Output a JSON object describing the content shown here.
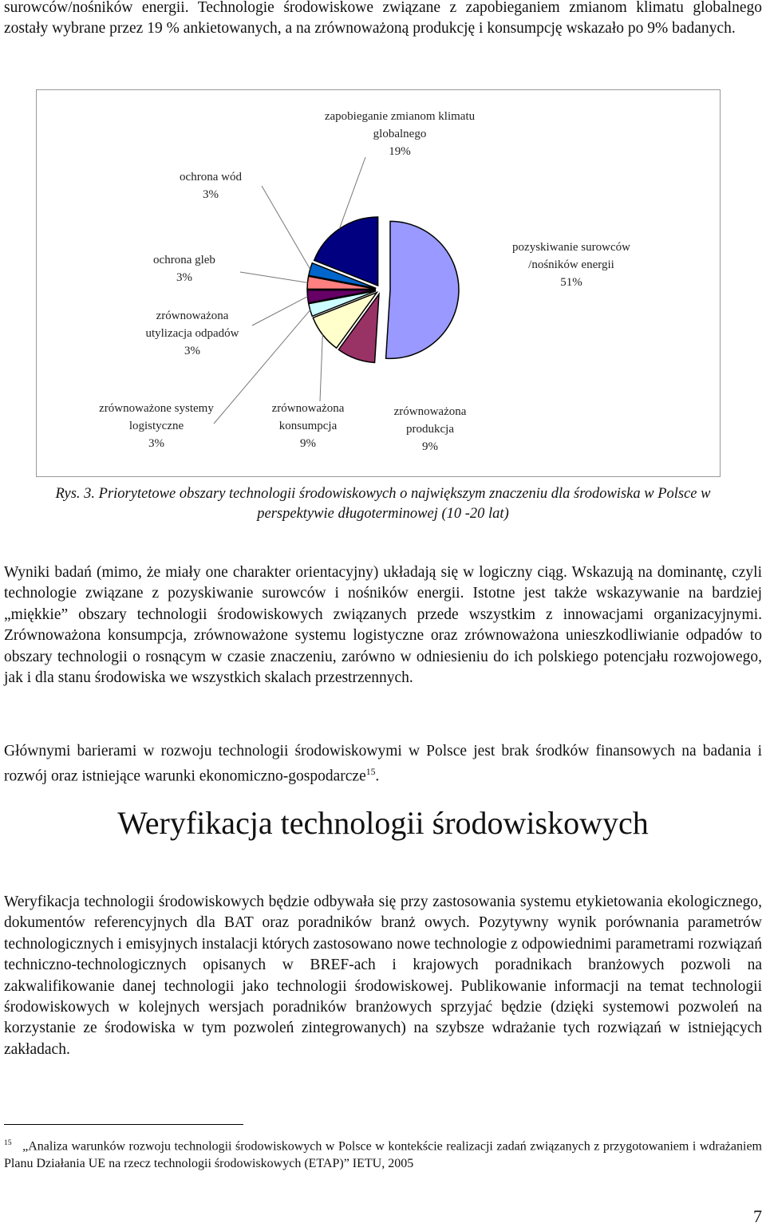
{
  "top_paragraph": "surowców/nośników energii. Technologie środowiskowe związane z zapobieganiem zmianom klimatu globalnego zostały wybrane przez 19 % ankietowanych, a na zrównoważoną produkcję i konsumpcję wskazało po 9% badanych.",
  "chart_data": {
    "type": "pie",
    "categories": [
      "pozyskiwanie surowców /nośników energii",
      "zrównoważona produkcja",
      "zrównoważona konsumpcja",
      "zrównoważone systemy logistyczne",
      "zrównoważona utylizacja odpadów",
      "ochrona gleb",
      "ochrona wód",
      "zapobieganie zmianom klimatu globalnego"
    ],
    "values": [
      51,
      9,
      9,
      3,
      3,
      3,
      3,
      19
    ],
    "value_labels": [
      "51%",
      "9%",
      "9%",
      "3%",
      "3%",
      "3%",
      "3%",
      "19%"
    ],
    "colors": [
      "#9999ff",
      "#993366",
      "#ffffcc",
      "#ccffff",
      "#660066",
      "#ff8080",
      "#0066cc",
      "#000080"
    ]
  },
  "caption": "Rys. 3. Priorytetowe obszary technologii środowiskowych o największym znaczeniu dla środowiska w Polsce w perspektywie długoterminowej (10 -20 lat)",
  "paragraphs": [
    {
      "text": "Wyniki badań (mimo, że miały one charakter orientacyjny) układają się w logiczny ciąg. Wskazują na dominantę, czyli technologie związane z pozyskiwanie surowców i nośników energii. Istotne jest także wskazywanie na bardziej „miękkie” obszary technologii środowiskowych związanych przede wszystkim z innowacjami organizacyjnymi. Zrównoważona konsumpcja, zrównoważone systemu logistyczne oraz zrównoważona unieszkodliwianie odpadów to obszary technologii o rosnącym w czasie znaczeniu, zarówno w odniesieniu do ich polskiego potencjału rozwojowego, jak i dla stanu środowiska we wszystkich skalach przestrzennych."
    },
    {
      "text": "Głównymi barierami w rozwoju technologii środowiskowymi w Polsce jest brak środków finansowych na badania i rozwój oraz istniejące warunki ekonomiczno-gospodarcze",
      "ref": "15",
      "end": "."
    }
  ],
  "heading": "Weryfikacja technologii środowiskowych",
  "section_paragraph": "Weryfikacja technologii środowiskowych będzie odbywała się przy zastosowania systemu etykietowania ekologicznego, dokumentów referencyjnych dla BAT oraz poradników branż owych. Pozytywny wynik porównania parametrów technologicznych i emisyjnych instalacji których zastosowano nowe technologie z odpowiednimi parametrami rozwiązań techniczno-technologicznych opisanych w BREF-ach i krajowych poradnikach branżowych pozwoli na zakwalifikowanie danej technologii jako technologii środowiskowej. Publikowanie informacji na temat technologii środowiskowych w kolejnych wersjach poradników branżowych sprzyjać będzie (dzięki systemowi pozwoleń na korzystanie ze środowiska w tym pozwoleń zintegrowanych) na szybsze wdrażanie tych rozwiązań w istniejących zakładach.",
  "footnote": {
    "number": "15",
    "text": "„Analiza warunków rozwoju technologii środowiskowych w Polsce w kontekście realizacji zadań związanych z przygotowaniem i wdrażaniem Planu Działania UE na rzecz technologii środowiskowych (ETAP)”  IETU, 2005"
  },
  "page_number": "7"
}
